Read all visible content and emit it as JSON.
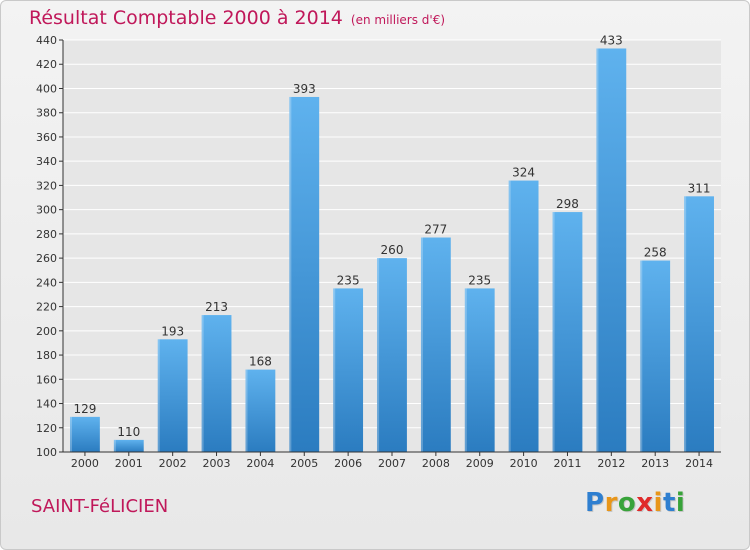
{
  "header": {
    "title": "Résultat Comptable 2000 à 2014",
    "unit": "(en milliers d'€)"
  },
  "footer": {
    "town": "SAINT-FéLICIEN",
    "brand": {
      "letters": [
        "P",
        "r",
        "o",
        "x",
        "i",
        "t",
        "i"
      ],
      "colors": [
        "#2f7fd0",
        "#e8961a",
        "#38a33a",
        "#e02a2a",
        "#e8961a",
        "#2f7fd0",
        "#38a33a"
      ]
    }
  },
  "colors": {
    "title": "#c0185a",
    "bar_top": "#5fb2ee",
    "bar_bottom": "#2b7cc0",
    "axis": "#333333",
    "grid": "#ffffff"
  },
  "chart_data": {
    "type": "bar",
    "title": "Résultat Comptable 2000 à 2014",
    "xlabel": "",
    "ylabel": "",
    "ylim": [
      100,
      440
    ],
    "ytick_step": 20,
    "grid": true,
    "categories": [
      "2000",
      "2001",
      "2002",
      "2003",
      "2004",
      "2005",
      "2006",
      "2007",
      "2008",
      "2009",
      "2010",
      "2011",
      "2012",
      "2013",
      "2014"
    ],
    "values": [
      129,
      110,
      193,
      213,
      168,
      393,
      235,
      260,
      277,
      235,
      324,
      298,
      433,
      258,
      311
    ]
  }
}
